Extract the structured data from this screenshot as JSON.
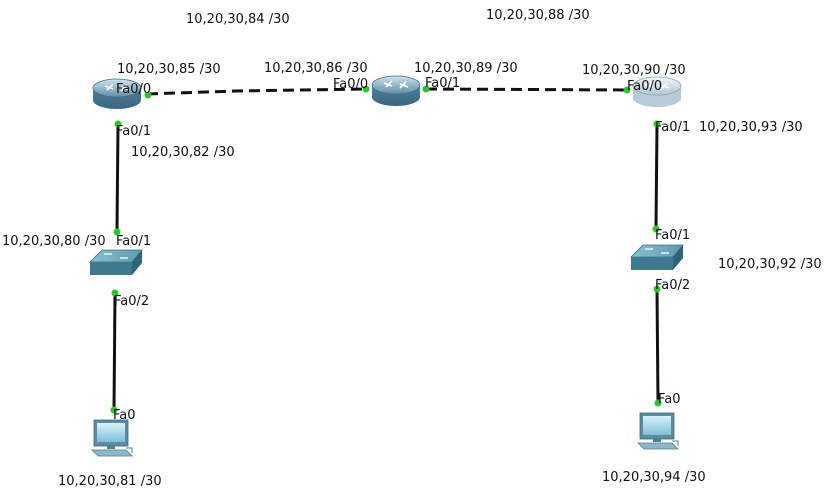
{
  "diagram": {
    "colors": {
      "link_serial": "#111111",
      "link_copper": "#111111",
      "port_dot": "#22cc22",
      "router_body": "#6fa0b8",
      "switch_body": "#4f8aa0",
      "pc_screen": "#9fd4e8"
    },
    "network_labels": {
      "net_84": "10,20,30,84 /30",
      "net_88": "10,20,30,88 /30",
      "net_80": "10,20,30,80 /30",
      "net_92": "10,20,30,92 /30"
    },
    "ip_labels": {
      "r1_fa00": "10,20,30,85 /30",
      "r2_fa00": "10,20,30,86 /30",
      "r2_fa01": "10,20,30,89 /30",
      "r3_fa00": "10,20,30,90 /30",
      "r1_fa01": "10,20,30,82 /30",
      "r3_fa01": "10,20,30,93 /30",
      "pc1": "10,20,30,81 /30",
      "pc2": "10,20,30,94 /30"
    },
    "port_labels": {
      "r1_fa00": "Fa0/0",
      "r1_fa01": "Fa0/1",
      "r2_fa00": "Fa0/0",
      "r2_fa01": "Fa0/1",
      "r3_fa00": "Fa0/0",
      "r3_fa01": "Fa0/1",
      "sw1_fa01": "Fa0/1",
      "sw1_fa02": "Fa0/2",
      "sw2_fa01": "Fa0/1",
      "sw2_fa02": "Fa0/2",
      "pc1_fa0": "Fa0",
      "pc2_fa0": "Fa0"
    },
    "devices": [
      {
        "id": "router-1",
        "type": "router",
        "icon": "router-icon"
      },
      {
        "id": "router-2",
        "type": "router",
        "icon": "router-icon"
      },
      {
        "id": "router-3",
        "type": "router",
        "icon": "router-icon"
      },
      {
        "id": "switch-1",
        "type": "switch",
        "icon": "switch-icon"
      },
      {
        "id": "switch-2",
        "type": "switch",
        "icon": "switch-icon"
      },
      {
        "id": "pc-1",
        "type": "pc",
        "icon": "pc-icon"
      },
      {
        "id": "pc-2",
        "type": "pc",
        "icon": "pc-icon"
      }
    ],
    "links": [
      {
        "from": "router-1",
        "to": "router-2",
        "style": "dashed"
      },
      {
        "from": "router-2",
        "to": "router-3",
        "style": "dashed"
      },
      {
        "from": "router-1",
        "to": "switch-1",
        "style": "solid"
      },
      {
        "from": "switch-1",
        "to": "pc-1",
        "style": "solid"
      },
      {
        "from": "router-3",
        "to": "switch-2",
        "style": "solid"
      },
      {
        "from": "switch-2",
        "to": "pc-2",
        "style": "solid"
      }
    ]
  }
}
